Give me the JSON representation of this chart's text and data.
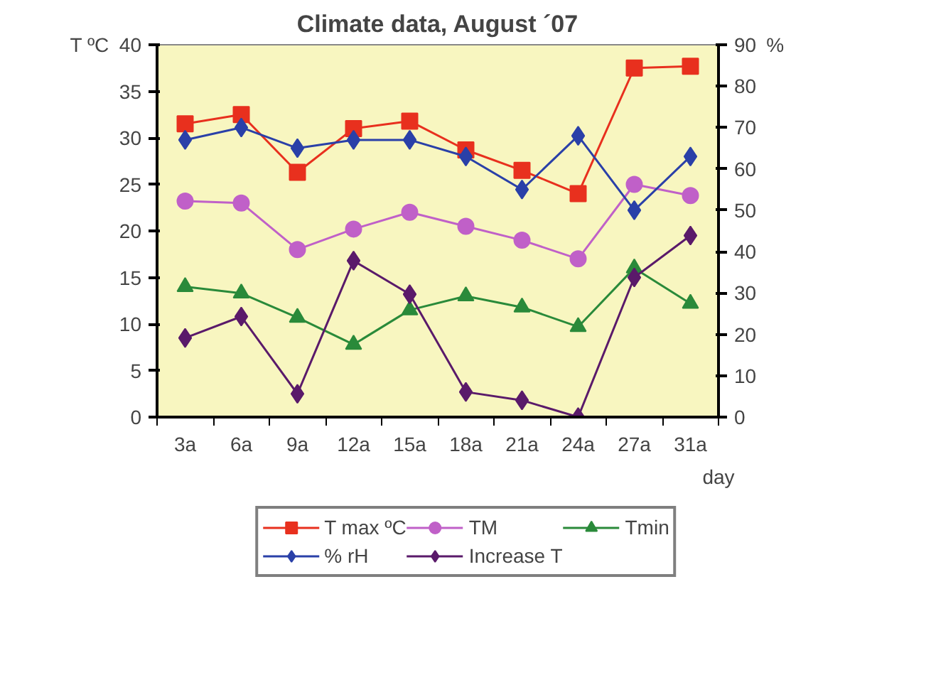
{
  "chart_data": {
    "type": "line",
    "title": "Climate data, August ´07",
    "ylabel": "T ºC",
    "y2label": "%",
    "xlabel": "day",
    "categories": [
      "3a",
      "6a",
      "9a",
      "12a",
      "15a",
      "18a",
      "21a",
      "24a",
      "27a",
      "31a"
    ],
    "ylim": [
      0,
      40
    ],
    "yticks": [
      0,
      5,
      10,
      15,
      20,
      25,
      30,
      35,
      40
    ],
    "y2lim": [
      0,
      90
    ],
    "y2ticks": [
      0,
      10,
      20,
      30,
      40,
      50,
      60,
      70,
      80,
      90
    ],
    "grid": false,
    "legend": "bottom",
    "series": [
      {
        "name": "T max ºC",
        "color": "#e8301e",
        "marker": "square",
        "values": [
          31.5,
          32.5,
          26.3,
          31,
          31.8,
          28.7,
          26.5,
          24,
          37.5,
          37.7
        ]
      },
      {
        "name": "TM",
        "color": "#c060c8",
        "marker": "circle",
        "values": [
          23.2,
          23,
          18,
          20.2,
          22,
          20.5,
          19,
          17,
          25,
          23.8
        ]
      },
      {
        "name": "Tmin",
        "color": "#2a8a3a",
        "marker": "triangle",
        "values": [
          14,
          13.3,
          10.7,
          7.8,
          11.5,
          13,
          11.8,
          9.7,
          16,
          12.2
        ]
      },
      {
        "name": "% rH",
        "color": "#2a40a8",
        "marker": "diamond",
        "axis": "y2",
        "values": [
          67,
          70,
          65,
          67,
          67,
          63,
          55,
          68,
          50,
          63
        ]
      },
      {
        "name": "Increase T",
        "color": "#5a1a6a",
        "marker": "diamond",
        "values": [
          8.5,
          10.8,
          2.5,
          16.8,
          13.2,
          2.7,
          1.8,
          0,
          15,
          19.5
        ]
      }
    ]
  }
}
